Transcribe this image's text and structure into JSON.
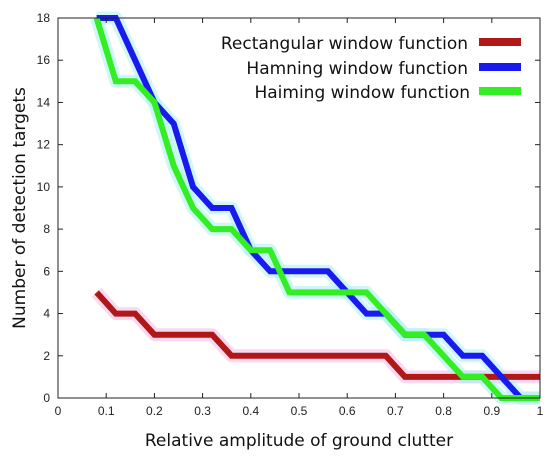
{
  "chart_data": {
    "type": "line",
    "title": "",
    "xlabel": "Relative amplitude of ground clutter",
    "ylabel": "Number of detection targets",
    "xlim": [
      0,
      1
    ],
    "ylim": [
      0,
      18
    ],
    "xticks": [
      0,
      0.1,
      0.2,
      0.3,
      0.4,
      0.5,
      0.6,
      0.7,
      0.8,
      0.9,
      1
    ],
    "yticks": [
      0,
      2,
      4,
      6,
      8,
      10,
      12,
      14,
      16,
      18
    ],
    "xtick_labels": [
      "0",
      "0.1",
      "0.2",
      "0.3",
      "0.4",
      "0.5",
      "0.6",
      "0.7",
      "0.8",
      "0.9",
      "1"
    ],
    "ytick_labels": [
      "0",
      "2",
      "4",
      "6",
      "8",
      "10",
      "12",
      "14",
      "16",
      "18"
    ],
    "grid": false,
    "legend_position": "top-right",
    "series": [
      {
        "name": "Rectangular window function",
        "color": "#b01818",
        "points": [
          [
            0.08,
            5
          ],
          [
            0.12,
            4
          ],
          [
            0.16,
            4
          ],
          [
            0.2,
            3
          ],
          [
            0.32,
            3
          ],
          [
            0.36,
            2
          ],
          [
            0.68,
            2
          ],
          [
            0.72,
            1
          ],
          [
            1.0,
            1
          ]
        ]
      },
      {
        "name": "Hamning window function",
        "color": "#1a1aee",
        "points": [
          [
            0.08,
            18
          ],
          [
            0.12,
            18
          ],
          [
            0.2,
            14
          ],
          [
            0.24,
            13
          ],
          [
            0.28,
            10
          ],
          [
            0.32,
            9
          ],
          [
            0.36,
            9
          ],
          [
            0.4,
            7
          ],
          [
            0.44,
            6
          ],
          [
            0.56,
            6
          ],
          [
            0.64,
            4
          ],
          [
            0.68,
            4
          ],
          [
            0.72,
            3
          ],
          [
            0.8,
            3
          ],
          [
            0.84,
            2
          ],
          [
            0.88,
            2
          ],
          [
            0.92,
            1
          ],
          [
            0.96,
            0
          ],
          [
            1.0,
            0
          ]
        ]
      },
      {
        "name": "Haiming window function",
        "color": "#33ee22",
        "points": [
          [
            0.08,
            18
          ],
          [
            0.12,
            15
          ],
          [
            0.16,
            15
          ],
          [
            0.2,
            14
          ],
          [
            0.24,
            11
          ],
          [
            0.28,
            9
          ],
          [
            0.32,
            8
          ],
          [
            0.36,
            8
          ],
          [
            0.4,
            7
          ],
          [
            0.44,
            7
          ],
          [
            0.48,
            5
          ],
          [
            0.64,
            5
          ],
          [
            0.72,
            3
          ],
          [
            0.76,
            3
          ],
          [
            0.84,
            1
          ],
          [
            0.88,
            1
          ],
          [
            0.92,
            0
          ],
          [
            1.0,
            0
          ]
        ]
      }
    ]
  }
}
